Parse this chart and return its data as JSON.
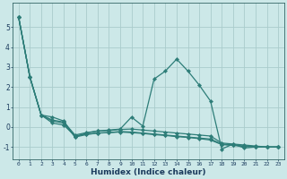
{
  "title": "",
  "xlabel": "Humidex (Indice chaleur)",
  "ylabel": "",
  "bg_color": "#cce8e8",
  "grid_color": "#aacccc",
  "line_color": "#2d7d78",
  "xlim": [
    -0.5,
    23.5
  ],
  "ylim": [
    -1.6,
    6.2
  ],
  "yticks": [
    -1,
    0,
    1,
    2,
    3,
    4,
    5
  ],
  "xticks": [
    0,
    1,
    2,
    3,
    4,
    5,
    6,
    7,
    8,
    9,
    10,
    11,
    12,
    13,
    14,
    15,
    16,
    17,
    18,
    19,
    20,
    21,
    22,
    23
  ],
  "series1": [
    [
      0,
      5.5
    ],
    [
      1,
      2.5
    ],
    [
      2,
      0.6
    ],
    [
      3,
      0.5
    ],
    [
      4,
      0.3
    ],
    [
      5,
      -0.5
    ],
    [
      6,
      -0.3
    ],
    [
      7,
      -0.2
    ],
    [
      8,
      -0.15
    ],
    [
      9,
      -0.1
    ],
    [
      10,
      0.5
    ],
    [
      11,
      0.05
    ],
    [
      12,
      2.4
    ],
    [
      13,
      2.8
    ],
    [
      14,
      3.4
    ],
    [
      15,
      2.8
    ],
    [
      16,
      2.1
    ],
    [
      17,
      1.3
    ],
    [
      18,
      -1.1
    ],
    [
      19,
      -0.85
    ],
    [
      20,
      -1.05
    ],
    [
      21,
      -1.0
    ],
    [
      22,
      -1.0
    ],
    [
      23,
      -1.0
    ]
  ],
  "series2": [
    [
      0,
      5.5
    ],
    [
      1,
      2.5
    ],
    [
      2,
      0.6
    ],
    [
      3,
      0.2
    ],
    [
      4,
      0.1
    ],
    [
      5,
      -0.45
    ],
    [
      6,
      -0.35
    ],
    [
      7,
      -0.3
    ],
    [
      8,
      -0.28
    ],
    [
      9,
      -0.25
    ],
    [
      10,
      -0.28
    ],
    [
      11,
      -0.32
    ],
    [
      12,
      -0.38
    ],
    [
      13,
      -0.42
    ],
    [
      14,
      -0.48
    ],
    [
      15,
      -0.52
    ],
    [
      16,
      -0.58
    ],
    [
      17,
      -0.65
    ],
    [
      18,
      -0.88
    ],
    [
      19,
      -0.92
    ],
    [
      20,
      -0.97
    ],
    [
      21,
      -1.0
    ],
    [
      22,
      -1.0
    ],
    [
      23,
      -1.0
    ]
  ],
  "series3": [
    [
      0,
      5.5
    ],
    [
      1,
      2.5
    ],
    [
      2,
      0.6
    ],
    [
      3,
      0.3
    ],
    [
      4,
      0.2
    ],
    [
      5,
      -0.5
    ],
    [
      6,
      -0.38
    ],
    [
      7,
      -0.3
    ],
    [
      8,
      -0.28
    ],
    [
      9,
      -0.22
    ],
    [
      10,
      -0.25
    ],
    [
      11,
      -0.3
    ],
    [
      12,
      -0.35
    ],
    [
      13,
      -0.4
    ],
    [
      14,
      -0.45
    ],
    [
      15,
      -0.5
    ],
    [
      16,
      -0.55
    ],
    [
      17,
      -0.6
    ],
    [
      18,
      -0.85
    ],
    [
      19,
      -0.9
    ],
    [
      20,
      -0.95
    ],
    [
      21,
      -0.98
    ],
    [
      22,
      -1.0
    ],
    [
      23,
      -1.0
    ]
  ],
  "series4": [
    [
      0,
      5.5
    ],
    [
      1,
      2.5
    ],
    [
      2,
      0.6
    ],
    [
      3,
      0.35
    ],
    [
      4,
      0.25
    ],
    [
      5,
      -0.4
    ],
    [
      6,
      -0.28
    ],
    [
      7,
      -0.2
    ],
    [
      8,
      -0.18
    ],
    [
      9,
      -0.12
    ],
    [
      10,
      -0.1
    ],
    [
      11,
      -0.15
    ],
    [
      12,
      -0.2
    ],
    [
      13,
      -0.25
    ],
    [
      14,
      -0.3
    ],
    [
      15,
      -0.35
    ],
    [
      16,
      -0.4
    ],
    [
      17,
      -0.45
    ],
    [
      18,
      -0.8
    ],
    [
      19,
      -0.85
    ],
    [
      20,
      -0.9
    ],
    [
      21,
      -0.95
    ],
    [
      22,
      -1.0
    ],
    [
      23,
      -1.0
    ]
  ]
}
